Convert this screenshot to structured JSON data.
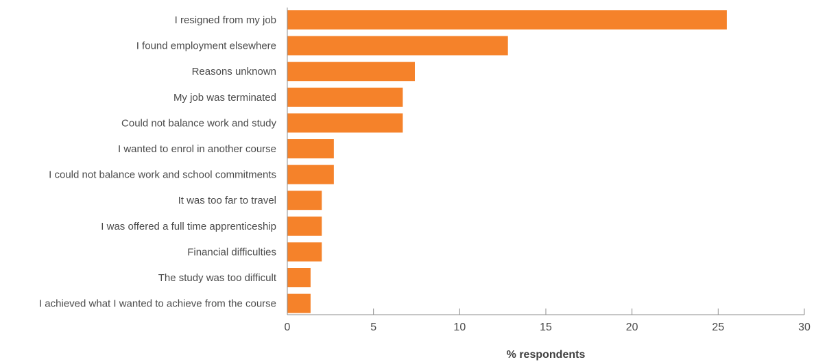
{
  "chart_data": {
    "type": "bar",
    "orientation": "horizontal",
    "categories": [
      "I resigned from my job",
      "I found employment elsewhere",
      "Reasons unknown",
      "My job was terminated",
      "Could not balance work and study",
      "I wanted to enrol in another course",
      "I could not balance work and school commitments",
      "It was too far to travel",
      "I was offered a full time apprenticeship",
      "Financial difficulties",
      "The study was too difficult",
      "I achieved what I wanted to achieve from the course"
    ],
    "values": [
      25.5,
      12.8,
      7.4,
      6.7,
      6.7,
      2.7,
      2.7,
      2.0,
      2.0,
      2.0,
      1.35,
      1.35
    ],
    "xlabel": "% respondents",
    "ylabel": "",
    "xlim": [
      0,
      30
    ],
    "xticks": [
      0,
      5,
      10,
      15,
      20,
      25,
      30
    ],
    "grid": false,
    "legend": "none",
    "bar_color": "#f5822a",
    "axis_color": "#8c8c8c",
    "text_color": "#4a4a4a"
  }
}
